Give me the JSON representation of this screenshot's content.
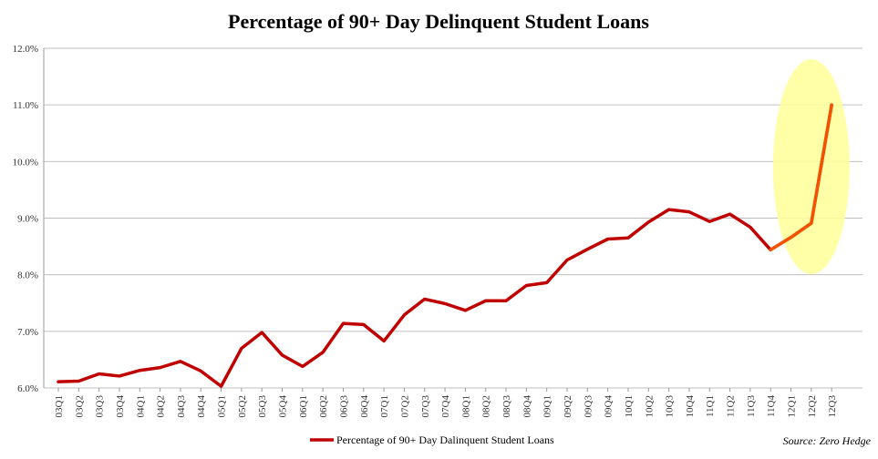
{
  "chart_data": {
    "type": "line",
    "title": "Percentage of 90+ Day Delinquent Student Loans",
    "xlabel": "",
    "ylabel": "",
    "categories": [
      "03Q1",
      "03Q2",
      "03Q3",
      "03Q4",
      "04Q1",
      "04Q2",
      "04Q3",
      "04Q4",
      "05Q1",
      "05Q2",
      "05Q3",
      "05Q4",
      "06Q1",
      "06Q2",
      "06Q3",
      "06Q4",
      "07Q1",
      "07Q2",
      "07Q3",
      "07Q4",
      "08Q1",
      "08Q2",
      "08Q3",
      "08Q4",
      "09Q1",
      "09Q2",
      "09Q3",
      "09Q4",
      "10Q1",
      "10Q2",
      "10Q3",
      "10Q4",
      "11Q1",
      "11Q2",
      "11Q3",
      "11Q4",
      "12Q1",
      "12Q2",
      "12Q3"
    ],
    "y_ticks": [
      "6.0%",
      "7.0%",
      "8.0%",
      "9.0%",
      "10.0%",
      "11.0%",
      "12.0%"
    ],
    "ylim": [
      6.0,
      12.0
    ],
    "grid": true,
    "series": [
      {
        "name": "Percentage of 90+ Day Dalinquent Student Loans",
        "color": "#c00000",
        "values": [
          6.11,
          6.12,
          6.25,
          6.21,
          6.31,
          6.36,
          6.47,
          6.3,
          6.03,
          6.7,
          6.98,
          6.58,
          6.38,
          6.63,
          7.14,
          7.12,
          6.83,
          7.29,
          7.57,
          7.49,
          7.37,
          7.54,
          7.54,
          7.81,
          7.86,
          8.26,
          8.45,
          8.63,
          8.65,
          8.93,
          9.15,
          9.11,
          8.94,
          9.07,
          8.84,
          8.44,
          8.66,
          8.91,
          11.0
        ]
      }
    ],
    "highlight": {
      "color": "#ffff99",
      "from_category": "12Q1",
      "to_category": "12Q3",
      "line_color": "#ff6600"
    },
    "legend_position": "bottom",
    "source_note": "Source: Zero Hedge"
  }
}
